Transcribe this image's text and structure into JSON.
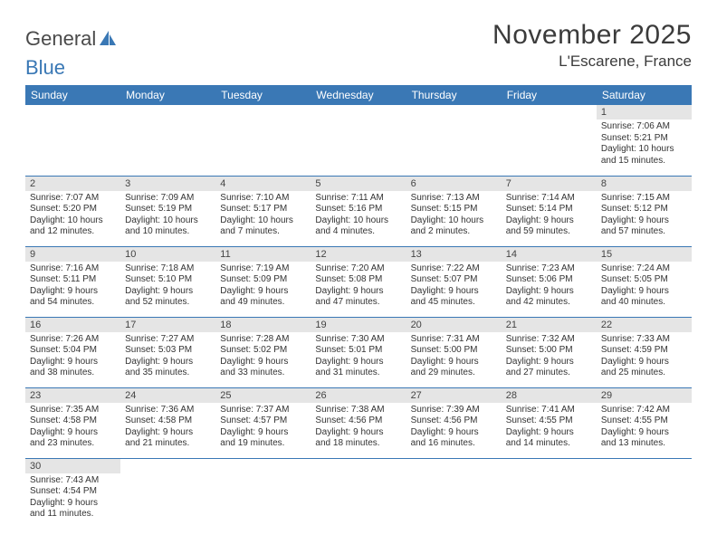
{
  "logo": {
    "part1": "General",
    "part2": "Blue"
  },
  "title": "November 2025",
  "location": "L'Escarene, France",
  "colors": {
    "header_bg": "#3a78b5",
    "header_text": "#ffffff",
    "daynum_bg": "#e5e5e5",
    "cell_border": "#3a78b5",
    "body_text": "#333333",
    "title_text": "#3b3b3b"
  },
  "day_headers": [
    "Sunday",
    "Monday",
    "Tuesday",
    "Wednesday",
    "Thursday",
    "Friday",
    "Saturday"
  ],
  "weeks": [
    [
      {
        "n": "",
        "sr": "",
        "ss": "",
        "d1": "",
        "d2": ""
      },
      {
        "n": "",
        "sr": "",
        "ss": "",
        "d1": "",
        "d2": ""
      },
      {
        "n": "",
        "sr": "",
        "ss": "",
        "d1": "",
        "d2": ""
      },
      {
        "n": "",
        "sr": "",
        "ss": "",
        "d1": "",
        "d2": ""
      },
      {
        "n": "",
        "sr": "",
        "ss": "",
        "d1": "",
        "d2": ""
      },
      {
        "n": "",
        "sr": "",
        "ss": "",
        "d1": "",
        "d2": ""
      },
      {
        "n": "1",
        "sr": "Sunrise: 7:06 AM",
        "ss": "Sunset: 5:21 PM",
        "d1": "Daylight: 10 hours",
        "d2": "and 15 minutes."
      }
    ],
    [
      {
        "n": "2",
        "sr": "Sunrise: 7:07 AM",
        "ss": "Sunset: 5:20 PM",
        "d1": "Daylight: 10 hours",
        "d2": "and 12 minutes."
      },
      {
        "n": "3",
        "sr": "Sunrise: 7:09 AM",
        "ss": "Sunset: 5:19 PM",
        "d1": "Daylight: 10 hours",
        "d2": "and 10 minutes."
      },
      {
        "n": "4",
        "sr": "Sunrise: 7:10 AM",
        "ss": "Sunset: 5:17 PM",
        "d1": "Daylight: 10 hours",
        "d2": "and 7 minutes."
      },
      {
        "n": "5",
        "sr": "Sunrise: 7:11 AM",
        "ss": "Sunset: 5:16 PM",
        "d1": "Daylight: 10 hours",
        "d2": "and 4 minutes."
      },
      {
        "n": "6",
        "sr": "Sunrise: 7:13 AM",
        "ss": "Sunset: 5:15 PM",
        "d1": "Daylight: 10 hours",
        "d2": "and 2 minutes."
      },
      {
        "n": "7",
        "sr": "Sunrise: 7:14 AM",
        "ss": "Sunset: 5:14 PM",
        "d1": "Daylight: 9 hours",
        "d2": "and 59 minutes."
      },
      {
        "n": "8",
        "sr": "Sunrise: 7:15 AM",
        "ss": "Sunset: 5:12 PM",
        "d1": "Daylight: 9 hours",
        "d2": "and 57 minutes."
      }
    ],
    [
      {
        "n": "9",
        "sr": "Sunrise: 7:16 AM",
        "ss": "Sunset: 5:11 PM",
        "d1": "Daylight: 9 hours",
        "d2": "and 54 minutes."
      },
      {
        "n": "10",
        "sr": "Sunrise: 7:18 AM",
        "ss": "Sunset: 5:10 PM",
        "d1": "Daylight: 9 hours",
        "d2": "and 52 minutes."
      },
      {
        "n": "11",
        "sr": "Sunrise: 7:19 AM",
        "ss": "Sunset: 5:09 PM",
        "d1": "Daylight: 9 hours",
        "d2": "and 49 minutes."
      },
      {
        "n": "12",
        "sr": "Sunrise: 7:20 AM",
        "ss": "Sunset: 5:08 PM",
        "d1": "Daylight: 9 hours",
        "d2": "and 47 minutes."
      },
      {
        "n": "13",
        "sr": "Sunrise: 7:22 AM",
        "ss": "Sunset: 5:07 PM",
        "d1": "Daylight: 9 hours",
        "d2": "and 45 minutes."
      },
      {
        "n": "14",
        "sr": "Sunrise: 7:23 AM",
        "ss": "Sunset: 5:06 PM",
        "d1": "Daylight: 9 hours",
        "d2": "and 42 minutes."
      },
      {
        "n": "15",
        "sr": "Sunrise: 7:24 AM",
        "ss": "Sunset: 5:05 PM",
        "d1": "Daylight: 9 hours",
        "d2": "and 40 minutes."
      }
    ],
    [
      {
        "n": "16",
        "sr": "Sunrise: 7:26 AM",
        "ss": "Sunset: 5:04 PM",
        "d1": "Daylight: 9 hours",
        "d2": "and 38 minutes."
      },
      {
        "n": "17",
        "sr": "Sunrise: 7:27 AM",
        "ss": "Sunset: 5:03 PM",
        "d1": "Daylight: 9 hours",
        "d2": "and 35 minutes."
      },
      {
        "n": "18",
        "sr": "Sunrise: 7:28 AM",
        "ss": "Sunset: 5:02 PM",
        "d1": "Daylight: 9 hours",
        "d2": "and 33 minutes."
      },
      {
        "n": "19",
        "sr": "Sunrise: 7:30 AM",
        "ss": "Sunset: 5:01 PM",
        "d1": "Daylight: 9 hours",
        "d2": "and 31 minutes."
      },
      {
        "n": "20",
        "sr": "Sunrise: 7:31 AM",
        "ss": "Sunset: 5:00 PM",
        "d1": "Daylight: 9 hours",
        "d2": "and 29 minutes."
      },
      {
        "n": "21",
        "sr": "Sunrise: 7:32 AM",
        "ss": "Sunset: 5:00 PM",
        "d1": "Daylight: 9 hours",
        "d2": "and 27 minutes."
      },
      {
        "n": "22",
        "sr": "Sunrise: 7:33 AM",
        "ss": "Sunset: 4:59 PM",
        "d1": "Daylight: 9 hours",
        "d2": "and 25 minutes."
      }
    ],
    [
      {
        "n": "23",
        "sr": "Sunrise: 7:35 AM",
        "ss": "Sunset: 4:58 PM",
        "d1": "Daylight: 9 hours",
        "d2": "and 23 minutes."
      },
      {
        "n": "24",
        "sr": "Sunrise: 7:36 AM",
        "ss": "Sunset: 4:58 PM",
        "d1": "Daylight: 9 hours",
        "d2": "and 21 minutes."
      },
      {
        "n": "25",
        "sr": "Sunrise: 7:37 AM",
        "ss": "Sunset: 4:57 PM",
        "d1": "Daylight: 9 hours",
        "d2": "and 19 minutes."
      },
      {
        "n": "26",
        "sr": "Sunrise: 7:38 AM",
        "ss": "Sunset: 4:56 PM",
        "d1": "Daylight: 9 hours",
        "d2": "and 18 minutes."
      },
      {
        "n": "27",
        "sr": "Sunrise: 7:39 AM",
        "ss": "Sunset: 4:56 PM",
        "d1": "Daylight: 9 hours",
        "d2": "and 16 minutes."
      },
      {
        "n": "28",
        "sr": "Sunrise: 7:41 AM",
        "ss": "Sunset: 4:55 PM",
        "d1": "Daylight: 9 hours",
        "d2": "and 14 minutes."
      },
      {
        "n": "29",
        "sr": "Sunrise: 7:42 AM",
        "ss": "Sunset: 4:55 PM",
        "d1": "Daylight: 9 hours",
        "d2": "and 13 minutes."
      }
    ],
    [
      {
        "n": "30",
        "sr": "Sunrise: 7:43 AM",
        "ss": "Sunset: 4:54 PM",
        "d1": "Daylight: 9 hours",
        "d2": "and 11 minutes."
      },
      {
        "n": "",
        "sr": "",
        "ss": "",
        "d1": "",
        "d2": ""
      },
      {
        "n": "",
        "sr": "",
        "ss": "",
        "d1": "",
        "d2": ""
      },
      {
        "n": "",
        "sr": "",
        "ss": "",
        "d1": "",
        "d2": ""
      },
      {
        "n": "",
        "sr": "",
        "ss": "",
        "d1": "",
        "d2": ""
      },
      {
        "n": "",
        "sr": "",
        "ss": "",
        "d1": "",
        "d2": ""
      },
      {
        "n": "",
        "sr": "",
        "ss": "",
        "d1": "",
        "d2": ""
      }
    ]
  ]
}
